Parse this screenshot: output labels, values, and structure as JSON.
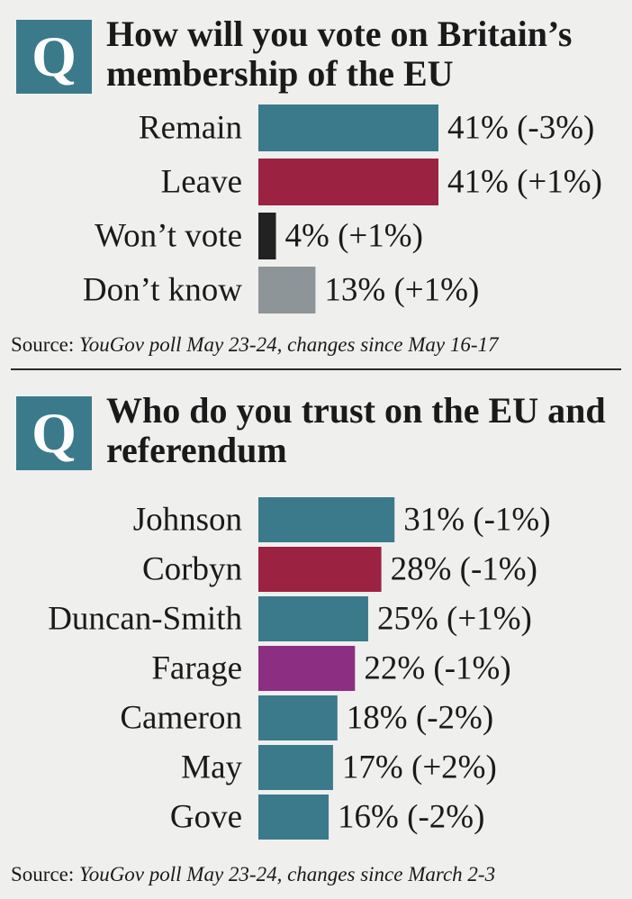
{
  "panels": [
    {
      "q_letter": "Q",
      "title": "How will you vote on Britain’s membership of the EU",
      "source_label": "Source:",
      "source_text": "YouGov poll May 23-24, changes since May 16-17"
    },
    {
      "q_letter": "Q",
      "title": "Who do you trust on the EU and referendum",
      "source_label": "Source:",
      "source_text": "YouGov poll May 23-24, changes since March 2-3"
    }
  ],
  "chart_data": [
    {
      "type": "bar",
      "orientation": "horizontal",
      "title": "How will you vote on Britain’s membership of the EU",
      "categories": [
        "Remain",
        "Leave",
        "Won’t vote",
        "Don’t know"
      ],
      "values": [
        41,
        41,
        4,
        13
      ],
      "changes": [
        "-3%",
        "+1%",
        "+1%",
        "+1%"
      ],
      "value_labels": [
        "41% (-3%)",
        "41% (+1%)",
        "4% (+1%)",
        "13% (+1%)"
      ],
      "colors": [
        "#3a7a8b",
        "#9c2242",
        "#222222",
        "#8e9598"
      ],
      "unit": "%",
      "xlim": [
        0,
        41
      ],
      "grid": false,
      "legend": "none"
    },
    {
      "type": "bar",
      "orientation": "horizontal",
      "title": "Who do you trust on the EU and referendum",
      "categories": [
        "Johnson",
        "Corbyn",
        "Duncan-Smith",
        "Farage",
        "Cameron",
        "May",
        "Gove"
      ],
      "values": [
        31,
        28,
        25,
        22,
        18,
        17,
        16
      ],
      "changes": [
        "-1%",
        "-1%",
        "+1%",
        "-1%",
        "-2%",
        "+2%",
        "-2%"
      ],
      "value_labels": [
        "31% (-1%)",
        "28% (-1%)",
        "25% (+1%)",
        "22% (-1%)",
        "18% (-2%)",
        "17% (+2%)",
        "16% (-2%)"
      ],
      "colors": [
        "#3a7a8b",
        "#9c2242",
        "#3a7a8b",
        "#8c2f82",
        "#3a7a8b",
        "#3a7a8b",
        "#3a7a8b"
      ],
      "unit": "%",
      "xlim": [
        0,
        41
      ],
      "grid": false,
      "legend": "none"
    }
  ]
}
